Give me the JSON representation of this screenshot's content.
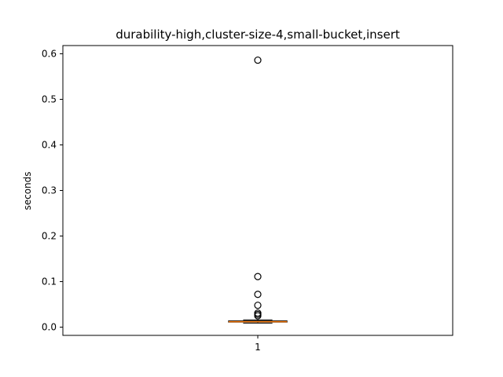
{
  "chart_data": {
    "type": "boxplot",
    "title": "durability-high,cluster-size-4,small-bucket,insert",
    "xlabel": "",
    "ylabel": "seconds",
    "ylim": [
      -0.018,
      0.618
    ],
    "yticks": [
      0.0,
      0.1,
      0.2,
      0.3,
      0.4,
      0.5,
      0.6
    ],
    "ytick_labels": [
      "0.0",
      "0.1",
      "0.2",
      "0.3",
      "0.4",
      "0.5",
      "0.6"
    ],
    "categories": [
      "1"
    ],
    "grid": false,
    "legend": "none",
    "boxes": [
      {
        "label": "1",
        "whisker_low": 0.009,
        "q1": 0.011,
        "median": 0.012,
        "q3": 0.014,
        "whisker_high": 0.016,
        "fliers": [
          0.025,
          0.028,
          0.031,
          0.048,
          0.072,
          0.111,
          0.586
        ]
      }
    ],
    "colors": {
      "box": "#000000",
      "median": "#ff7f0e",
      "flier_edge": "#000000",
      "axes": "#000000"
    }
  }
}
